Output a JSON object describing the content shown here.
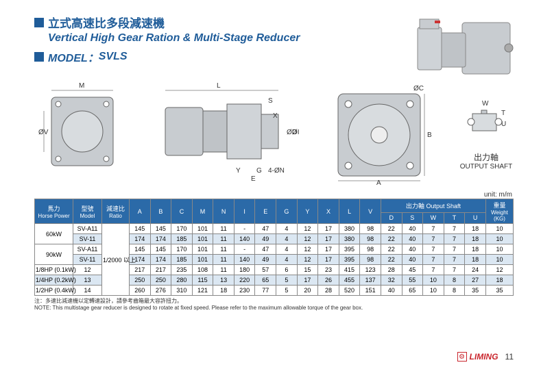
{
  "title": {
    "cn": "立式高速比多段減速機",
    "en": "Vertical High Gear Ration & Multi-Stage Reducer",
    "model_label": "MODEL：",
    "model_value": "SVLS"
  },
  "diagram_labels": {
    "M": "M",
    "L": "L",
    "V": "ØV",
    "I": "ØI",
    "S": "S",
    "X": "X",
    "Y": "Y",
    "G": "G",
    "E": "E",
    "D": "ØD",
    "N": "4-ØN",
    "C": "ØC",
    "A": "A",
    "B": "B",
    "W": "W",
    "T": "T",
    "U": "U",
    "shaft_cn": "出力軸",
    "shaft_en": "OUTPUT SHAFT"
  },
  "unit_label": "unit: m/m",
  "headers": {
    "hp_cn": "馬力",
    "hp_en": "Horse Power",
    "model_cn": "型號",
    "model_en": "Model",
    "ratio_cn": "減速比",
    "ratio_en": "Ratio",
    "shaft_cn": "出力軸",
    "shaft_en": "Output Shaft",
    "weight_cn": "重量",
    "weight_en": "Weight",
    "weight_unit": "(KG)",
    "cols": [
      "A",
      "B",
      "C",
      "M",
      "N",
      "I",
      "E",
      "G",
      "Y",
      "X",
      "L",
      "V"
    ],
    "shaft_cols": [
      "D",
      "S",
      "W",
      "T",
      "U"
    ]
  },
  "ratio_value": "1/2000 以上",
  "rows": [
    {
      "hp": "60kW",
      "hp_rs": 2,
      "model": "SV-A11",
      "v": [
        "145",
        "145",
        "170",
        "101",
        "11",
        "-",
        "47",
        "4",
        "12",
        "17",
        "380",
        "98",
        "22",
        "40",
        "7",
        "7",
        "18",
        "10"
      ],
      "alt": false
    },
    {
      "model": "SV-11",
      "v": [
        "174",
        "174",
        "185",
        "101",
        "11",
        "140",
        "49",
        "4",
        "12",
        "17",
        "380",
        "98",
        "22",
        "40",
        "7",
        "7",
        "18",
        "10"
      ],
      "alt": true
    },
    {
      "hp": "90kW",
      "hp_rs": 2,
      "model": "SV-A11",
      "v": [
        "145",
        "145",
        "170",
        "101",
        "11",
        "-",
        "47",
        "4",
        "12",
        "17",
        "395",
        "98",
        "22",
        "40",
        "7",
        "7",
        "18",
        "10"
      ],
      "alt": false
    },
    {
      "model": "SV-11",
      "v": [
        "174",
        "174",
        "185",
        "101",
        "11",
        "140",
        "49",
        "4",
        "12",
        "17",
        "395",
        "98",
        "22",
        "40",
        "7",
        "7",
        "18",
        "10"
      ],
      "alt": true
    },
    {
      "hp": "1/8HP (0.1kW)",
      "model": "12",
      "v": [
        "217",
        "217",
        "235",
        "108",
        "11",
        "180",
        "57",
        "6",
        "15",
        "23",
        "415",
        "123",
        "28",
        "45",
        "7",
        "7",
        "24",
        "12"
      ],
      "alt": false
    },
    {
      "hp": "1/4HP (0.2kW)",
      "model": "13",
      "v": [
        "250",
        "250",
        "280",
        "115",
        "13",
        "220",
        "65",
        "5",
        "17",
        "26",
        "455",
        "137",
        "32",
        "55",
        "10",
        "8",
        "27",
        "18"
      ],
      "alt": true
    },
    {
      "hp": "1/2HP (0.4kW)",
      "model": "14",
      "v": [
        "260",
        "276",
        "310",
        "121",
        "18",
        "230",
        "77",
        "5",
        "20",
        "28",
        "520",
        "151",
        "40",
        "65",
        "10",
        "8",
        "35",
        "35"
      ],
      "alt": false
    }
  ],
  "notes": {
    "cn": "注：多速比減速機以定轉速設計，請參考齒箱最大容許扭力。",
    "en": "NOTE: This multistage gear reducer is designed to rotate at fixed speed.  Please refer to the maximum allowable torque of the gear box."
  },
  "footer": {
    "brand": "LIMING",
    "page": "11"
  },
  "colors": {
    "brand_blue": "#1f5c99",
    "header_blue": "#2b6aa8",
    "row_alt": "#dbe7f2",
    "brand_red": "#c9252c",
    "diagram_gray": "#b8bcc0"
  }
}
